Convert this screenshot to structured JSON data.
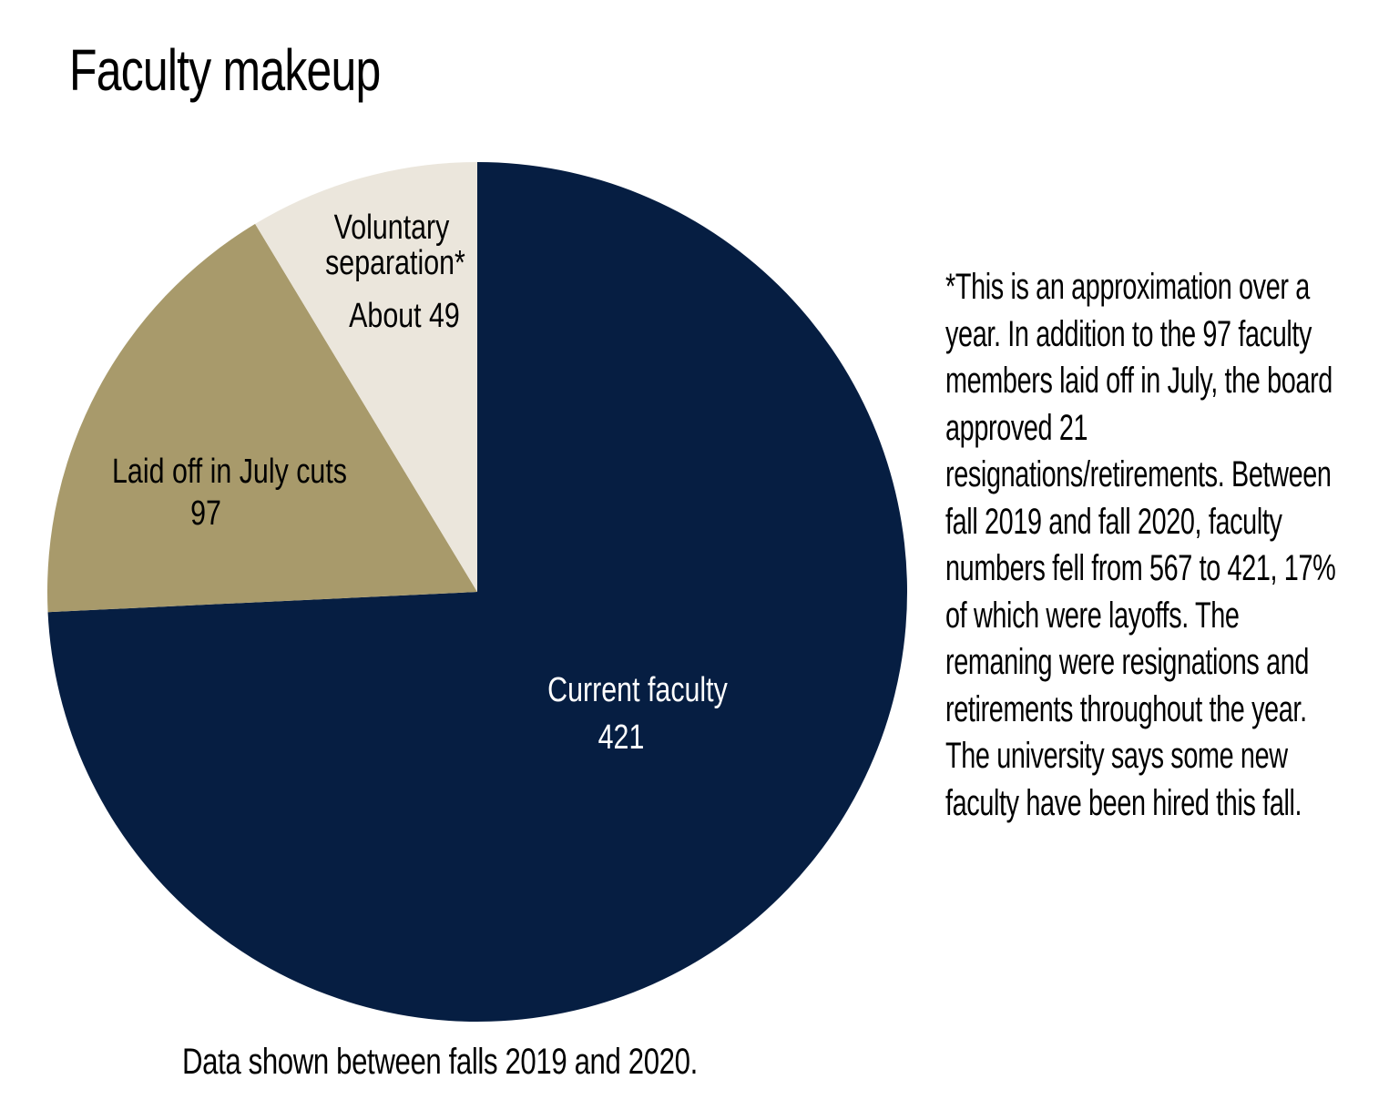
{
  "chart_data": {
    "type": "pie",
    "title": "Faculty makeup",
    "slices": [
      {
        "label": "Current faculty",
        "value": 421,
        "value_label": "421",
        "color": "#061e42",
        "text_color": "#ffffff"
      },
      {
        "label": "Laid off in July cuts",
        "value": 97,
        "value_label": "97",
        "color": "#a89a6b",
        "text_color": "#000000"
      },
      {
        "label": "Voluntary separation*",
        "label_lines": [
          "Voluntary",
          "separation*"
        ],
        "value": 49,
        "value_label": "About 49",
        "color": "#ebe6dc",
        "text_color": "#000000"
      }
    ],
    "footnote": "*This is an approximation over a year. In addition to the 97 faculty members laid off in July, the board approved 21 resignations/retirements. Between fall 2019 and fall 2020, faculty numbers fell from 567 to 421, 17% of which were layoffs. The remaning were resignations and retirements throughout the year. The university says some new faculty have been hired this fall.",
    "caption": "Data shown between falls 2019 and 2020."
  }
}
